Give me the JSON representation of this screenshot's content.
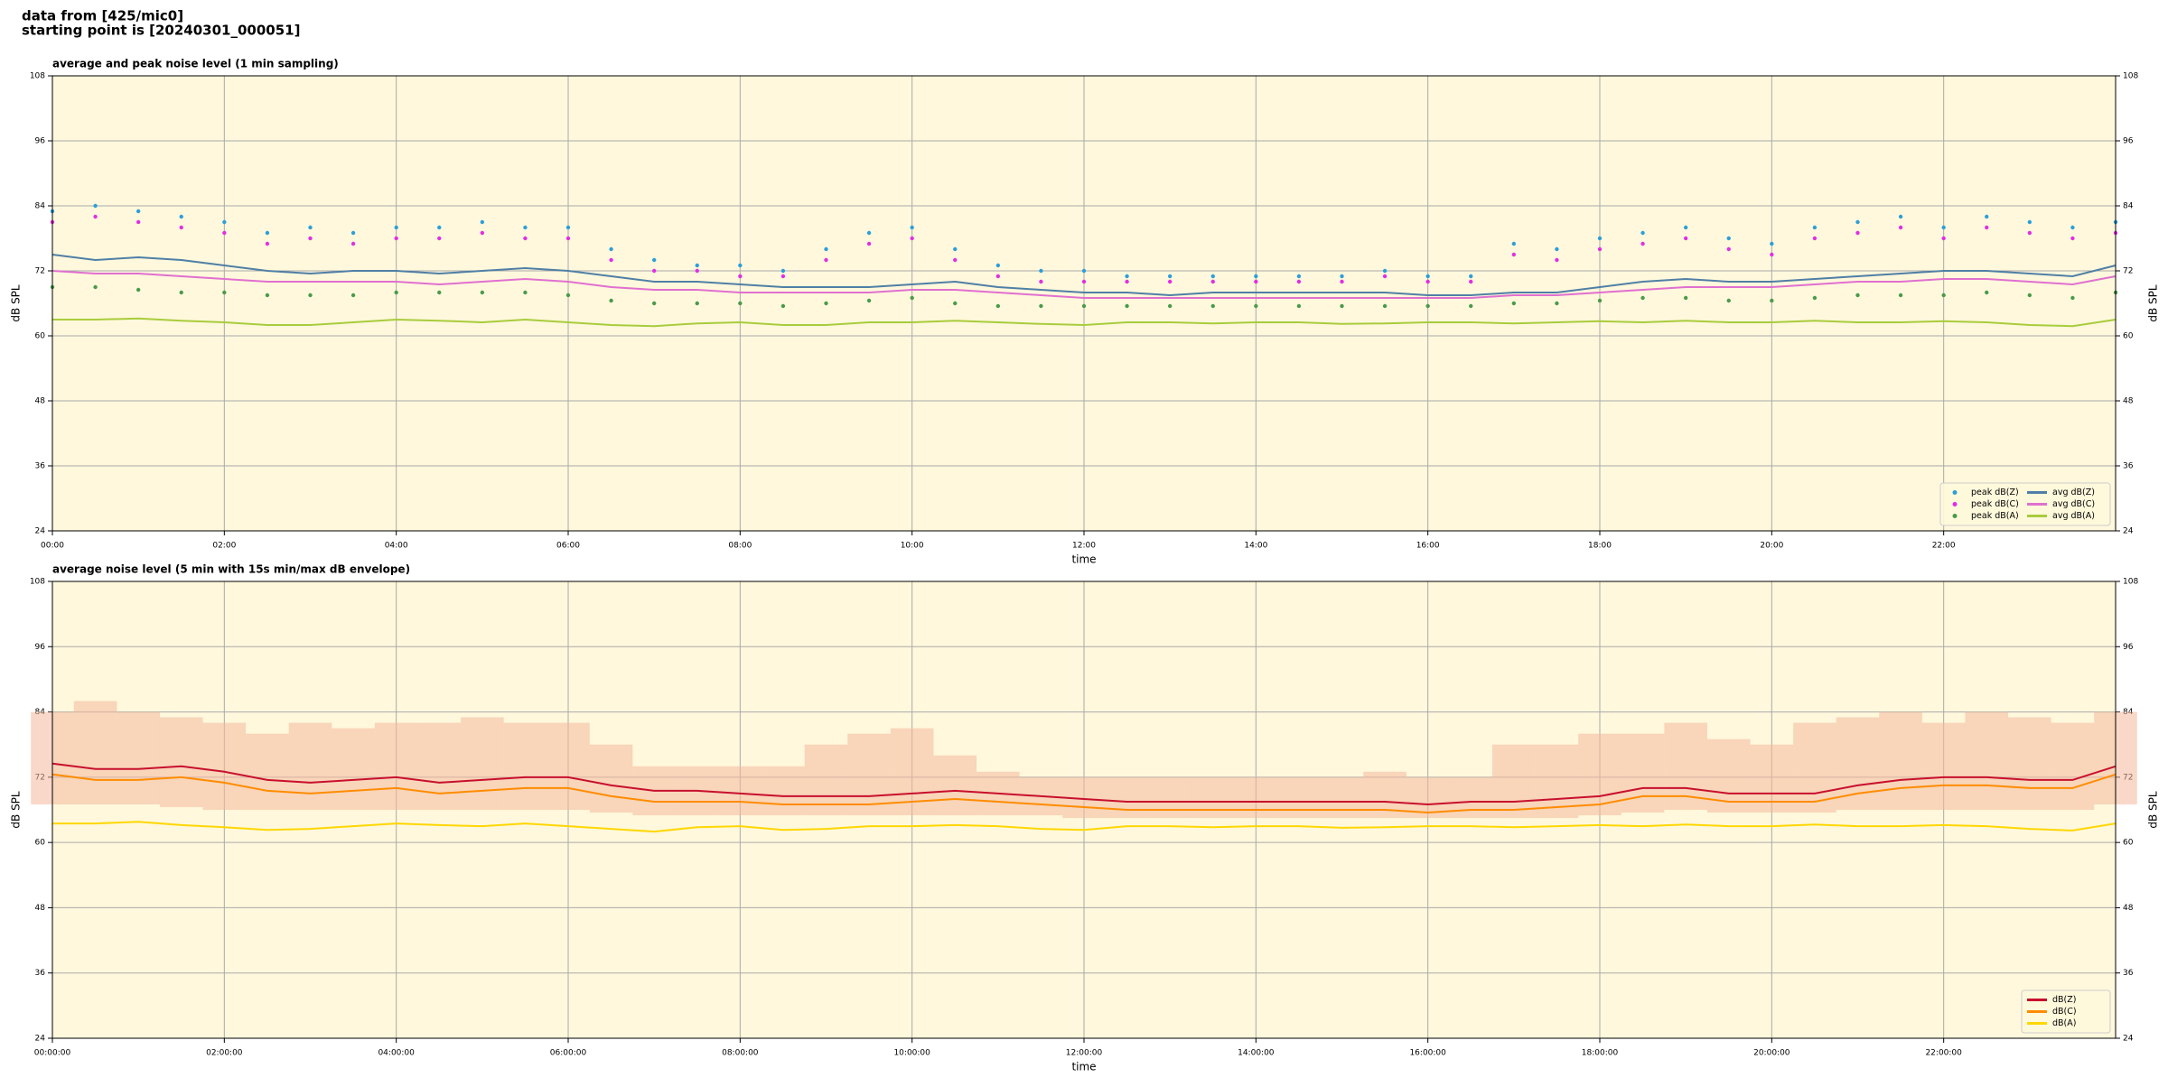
{
  "header": {
    "lines": [
      "data from [425/mic0]",
      "starting point is [20240301_000051]"
    ]
  },
  "chart_data": [
    {
      "type": "line",
      "title": "average and peak noise level (1 min sampling)",
      "xlabel": "time",
      "ylabel": "dB SPL",
      "x": [
        0,
        30,
        60,
        90,
        120,
        150,
        180,
        210,
        240,
        270,
        300,
        330,
        360,
        390,
        420,
        450,
        480,
        510,
        540,
        570,
        600,
        630,
        660,
        690,
        720,
        750,
        780,
        810,
        840,
        870,
        900,
        930,
        960,
        990,
        1020,
        1050,
        1080,
        1110,
        1140,
        1170,
        1200,
        1230,
        1260,
        1290,
        1320,
        1350,
        1380,
        1410,
        1440
      ],
      "xlim": [
        0,
        1440
      ],
      "xticks": [
        {
          "value": 0,
          "label": "00:00"
        },
        {
          "value": 120,
          "label": "02:00"
        },
        {
          "value": 240,
          "label": "04:00"
        },
        {
          "value": 360,
          "label": "06:00"
        },
        {
          "value": 480,
          "label": "08:00"
        },
        {
          "value": 600,
          "label": "10:00"
        },
        {
          "value": 720,
          "label": "12:00"
        },
        {
          "value": 840,
          "label": "14:00"
        },
        {
          "value": 960,
          "label": "16:00"
        },
        {
          "value": 1080,
          "label": "18:00"
        },
        {
          "value": 1200,
          "label": "20:00"
        },
        {
          "value": 1320,
          "label": "22:00"
        }
      ],
      "ylim": [
        24,
        108
      ],
      "yticks": [
        24,
        36,
        48,
        60,
        72,
        84,
        96,
        108
      ],
      "grid": true,
      "legend": "lower right",
      "legend_columns": 2,
      "series": [
        {
          "name": "peak dB(Z)",
          "style": "markers",
          "color": "#2b9fd9",
          "values": [
            83,
            84,
            83,
            82,
            81,
            79,
            80,
            79,
            80,
            80,
            81,
            80,
            80,
            76,
            74,
            73,
            73,
            72,
            76,
            79,
            80,
            76,
            73,
            72,
            72,
            71,
            71,
            71,
            71,
            71,
            71,
            72,
            71,
            71,
            77,
            76,
            78,
            79,
            80,
            78,
            77,
            80,
            81,
            82,
            80,
            82,
            81,
            80,
            81
          ]
        },
        {
          "name": "peak dB(C)",
          "style": "markers",
          "color": "#e22ee2",
          "values": [
            81,
            82,
            81,
            80,
            79,
            77,
            78,
            77,
            78,
            78,
            79,
            78,
            78,
            74,
            72,
            72,
            71,
            71,
            74,
            77,
            78,
            74,
            71,
            70,
            70,
            70,
            70,
            70,
            70,
            70,
            70,
            71,
            70,
            70,
            75,
            74,
            76,
            77,
            78,
            76,
            75,
            78,
            79,
            80,
            78,
            80,
            79,
            78,
            79
          ]
        },
        {
          "name": "peak dB(A)",
          "style": "markers",
          "color": "#4a9a4a",
          "values": [
            69,
            69,
            68.5,
            68,
            68,
            67.5,
            67.5,
            67.5,
            68,
            68,
            68,
            68,
            67.5,
            66.5,
            66,
            66,
            66,
            65.5,
            66,
            66.5,
            67,
            66,
            65.5,
            65.5,
            65.5,
            65.5,
            65.5,
            65.5,
            65.5,
            65.5,
            65.5,
            65.5,
            65.5,
            65.5,
            66,
            66,
            66.5,
            67,
            67,
            66.5,
            66.5,
            67,
            67.5,
            67.5,
            67.5,
            68,
            67.5,
            67,
            68
          ]
        },
        {
          "name": "avg dB(Z)",
          "style": "line",
          "color": "#4f7fa6",
          "values": [
            75,
            74,
            74.5,
            74,
            73,
            72,
            71.5,
            72,
            72,
            71.5,
            72,
            72.5,
            72,
            71,
            70,
            70,
            69.5,
            69,
            69,
            69,
            69.5,
            70,
            69,
            68.5,
            68,
            68,
            67.5,
            68,
            68,
            68,
            68,
            68,
            67.5,
            67.5,
            68,
            68,
            69,
            70,
            70.5,
            70,
            70,
            70.5,
            71,
            71.5,
            72,
            72,
            71.5,
            71,
            73
          ]
        },
        {
          "name": "avg dB(C)",
          "style": "line",
          "color": "#e070d0",
          "values": [
            72,
            71.5,
            71.5,
            71,
            70.5,
            70,
            70,
            70,
            70,
            69.5,
            70,
            70.5,
            70,
            69,
            68.5,
            68.5,
            68,
            68,
            68,
            68,
            68.5,
            68.5,
            68,
            67.5,
            67,
            67,
            67,
            67,
            67,
            67,
            67,
            67,
            67,
            67,
            67.5,
            67.5,
            68,
            68.5,
            69,
            69,
            69,
            69.5,
            70,
            70,
            70.5,
            70.5,
            70,
            69.5,
            71
          ]
        },
        {
          "name": "avg dB(A)",
          "style": "line",
          "color": "#a8cc3c",
          "values": [
            63,
            63,
            63.2,
            62.8,
            62.5,
            62,
            62,
            62.5,
            63,
            62.8,
            62.5,
            63,
            62.5,
            62,
            61.8,
            62.3,
            62.5,
            62,
            62,
            62.5,
            62.5,
            62.8,
            62.5,
            62.2,
            62,
            62.5,
            62.5,
            62.3,
            62.5,
            62.5,
            62.2,
            62.3,
            62.5,
            62.5,
            62.3,
            62.5,
            62.7,
            62.5,
            62.8,
            62.5,
            62.5,
            62.8,
            62.5,
            62.5,
            62.7,
            62.5,
            62,
            61.8,
            63
          ]
        }
      ]
    },
    {
      "type": "line",
      "title": "average noise level (5 min with 15s min/max dB envelope)",
      "xlabel": "time",
      "ylabel": "dB SPL",
      "x": [
        0,
        30,
        60,
        90,
        120,
        150,
        180,
        210,
        240,
        270,
        300,
        330,
        360,
        390,
        420,
        450,
        480,
        510,
        540,
        570,
        600,
        630,
        660,
        690,
        720,
        750,
        780,
        810,
        840,
        870,
        900,
        930,
        960,
        990,
        1020,
        1050,
        1080,
        1110,
        1140,
        1170,
        1200,
        1230,
        1260,
        1290,
        1320,
        1350,
        1380,
        1410,
        1440
      ],
      "xlim": [
        0,
        1440
      ],
      "xticks": [
        {
          "value": 0,
          "label": "00:00:00"
        },
        {
          "value": 120,
          "label": "02:00:00"
        },
        {
          "value": 240,
          "label": "04:00:00"
        },
        {
          "value": 360,
          "label": "06:00:00"
        },
        {
          "value": 480,
          "label": "08:00:00"
        },
        {
          "value": 600,
          "label": "10:00:00"
        },
        {
          "value": 720,
          "label": "12:00:00"
        },
        {
          "value": 840,
          "label": "14:00:00"
        },
        {
          "value": 960,
          "label": "16:00:00"
        },
        {
          "value": 1080,
          "label": "18:00:00"
        },
        {
          "value": 1200,
          "label": "20:00:00"
        },
        {
          "value": 1320,
          "label": "22:00:00"
        }
      ],
      "ylim": [
        24,
        108
      ],
      "yticks": [
        24,
        36,
        48,
        60,
        72,
        84,
        96,
        108
      ],
      "grid": true,
      "legend": "lower right",
      "legend_columns": 1,
      "envelope": {
        "color": "#f4b89c",
        "max": [
          84,
          86,
          84,
          83,
          82,
          80,
          82,
          81,
          82,
          82,
          83,
          82,
          82,
          78,
          74,
          74,
          74,
          74,
          78,
          80,
          81,
          76,
          73,
          72,
          72,
          72,
          72,
          72,
          72,
          72,
          72,
          73,
          72,
          72,
          78,
          78,
          80,
          80,
          82,
          79,
          78,
          82,
          83,
          84,
          82,
          84,
          83,
          82,
          84
        ],
        "min": [
          67,
          67,
          67,
          66.5,
          66,
          66,
          66,
          66,
          66,
          66,
          66,
          66,
          66,
          65.5,
          65,
          65,
          65,
          65,
          65,
          65,
          65,
          65,
          65,
          65,
          64.5,
          64.5,
          64.5,
          64.5,
          64.5,
          64.5,
          64.5,
          64.5,
          64.5,
          64.5,
          64.5,
          64.5,
          65,
          65.5,
          66,
          65.5,
          65.5,
          65.5,
          66,
          66,
          66,
          66,
          66,
          66,
          67
        ]
      },
      "series": [
        {
          "name": "dB(Z)",
          "style": "line",
          "color": "#c8102e",
          "values": [
            74.5,
            73.5,
            73.5,
            74,
            73,
            71.5,
            71,
            71.5,
            72,
            71,
            71.5,
            72,
            72,
            70.5,
            69.5,
            69.5,
            69,
            68.5,
            68.5,
            68.5,
            69,
            69.5,
            69,
            68.5,
            68,
            67.5,
            67.5,
            67.5,
            67.5,
            67.5,
            67.5,
            67.5,
            67,
            67.5,
            67.5,
            68,
            68.5,
            70,
            70,
            69,
            69,
            69,
            70.5,
            71.5,
            72,
            72,
            71.5,
            71.5,
            74
          ]
        },
        {
          "name": "dB(C)",
          "style": "line",
          "color": "#ff8c00",
          "values": [
            72.5,
            71.5,
            71.5,
            72,
            71,
            69.5,
            69,
            69.5,
            70,
            69,
            69.5,
            70,
            70,
            68.5,
            67.5,
            67.5,
            67.5,
            67,
            67,
            67,
            67.5,
            68,
            67.5,
            67,
            66.5,
            66,
            66,
            66,
            66,
            66,
            66,
            66,
            65.5,
            66,
            66,
            66.5,
            67,
            68.5,
            68.5,
            67.5,
            67.5,
            67.5,
            69,
            70,
            70.5,
            70.5,
            70,
            70,
            72.5
          ]
        },
        {
          "name": "dB(A)",
          "style": "line",
          "color": "#ffd700",
          "values": [
            63.5,
            63.5,
            63.8,
            63.2,
            62.8,
            62.3,
            62.5,
            63,
            63.5,
            63.2,
            63,
            63.5,
            63,
            62.5,
            62,
            62.8,
            63,
            62.3,
            62.5,
            63,
            63,
            63.2,
            63,
            62.5,
            62.3,
            63,
            63,
            62.8,
            63,
            63,
            62.7,
            62.8,
            63,
            63,
            62.8,
            63,
            63.2,
            63,
            63.3,
            63,
            63,
            63.3,
            63,
            63,
            63.2,
            63,
            62.5,
            62.2,
            63.5
          ]
        }
      ]
    }
  ]
}
